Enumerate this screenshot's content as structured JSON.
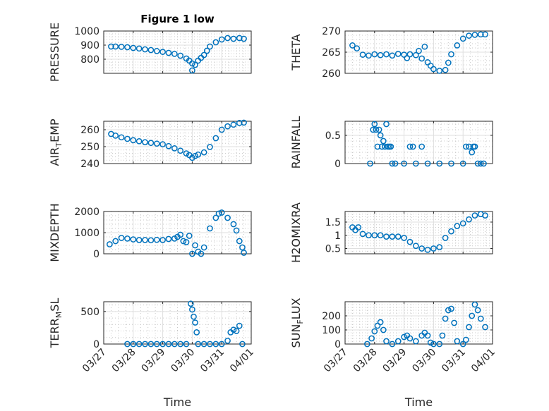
{
  "chart_data": [
    {
      "type": "scatter",
      "title": "Figure 1 low",
      "ylabel": "PRESSURE",
      "ylabel_sub": "",
      "ylabel_end": "",
      "ylim": [
        700,
        1000
      ],
      "yticks": [
        800,
        900,
        1000
      ],
      "x": [
        "03/27",
        "03/28",
        "03/29",
        "03/30",
        "03/31",
        "04/01"
      ],
      "xlabel": "",
      "show_xticklabels": false,
      "points": [
        [
          0.25,
          890
        ],
        [
          0.4,
          890
        ],
        [
          0.6,
          888
        ],
        [
          0.8,
          885
        ],
        [
          1.0,
          880
        ],
        [
          1.2,
          876
        ],
        [
          1.4,
          870
        ],
        [
          1.6,
          865
        ],
        [
          1.8,
          858
        ],
        [
          2.0,
          852
        ],
        [
          2.2,
          845
        ],
        [
          2.4,
          838
        ],
        [
          2.6,
          825
        ],
        [
          2.8,
          805
        ],
        [
          2.9,
          790
        ],
        [
          3.0,
          770
        ],
        [
          3.0,
          720
        ],
        [
          3.1,
          760
        ],
        [
          3.2,
          790
        ],
        [
          3.3,
          810
        ],
        [
          3.4,
          830
        ],
        [
          3.5,
          860
        ],
        [
          3.6,
          890
        ],
        [
          3.8,
          920
        ],
        [
          4.0,
          940
        ],
        [
          4.2,
          950
        ],
        [
          4.4,
          945
        ],
        [
          4.6,
          950
        ],
        [
          4.75,
          945
        ]
      ]
    },
    {
      "type": "scatter",
      "title": "",
      "ylabel": "THETA",
      "ylabel_sub": "",
      "ylabel_end": "",
      "ylim": [
        260,
        270
      ],
      "yticks": [
        260,
        265,
        270
      ],
      "x": [
        "03/27",
        "03/28",
        "03/29",
        "03/30",
        "03/31",
        "04/01"
      ],
      "xlabel": "",
      "show_xticklabels": false,
      "points": [
        [
          0.25,
          266.6
        ],
        [
          0.4,
          265.9
        ],
        [
          0.6,
          264.4
        ],
        [
          0.8,
          264.2
        ],
        [
          1.0,
          264.5
        ],
        [
          1.2,
          264.3
        ],
        [
          1.4,
          264.5
        ],
        [
          1.6,
          264.2
        ],
        [
          1.8,
          264.6
        ],
        [
          2.0,
          264.4
        ],
        [
          2.1,
          263.6
        ],
        [
          2.2,
          264.5
        ],
        [
          2.4,
          264.3
        ],
        [
          2.5,
          265.3
        ],
        [
          2.6,
          263.5
        ],
        [
          2.7,
          266.3
        ],
        [
          2.8,
          262.6
        ],
        [
          2.9,
          261.8
        ],
        [
          3.0,
          261.0
        ],
        [
          3.2,
          260.6
        ],
        [
          3.4,
          260.8
        ],
        [
          3.5,
          262.5
        ],
        [
          3.6,
          264.5
        ],
        [
          3.8,
          266.6
        ],
        [
          4.0,
          268.2
        ],
        [
          4.2,
          268.9
        ],
        [
          4.4,
          269.1
        ],
        [
          4.6,
          269.2
        ],
        [
          4.75,
          269.2
        ]
      ]
    },
    {
      "type": "scatter",
      "title": "",
      "ylabel": "AIR",
      "ylabel_sub": "T",
      "ylabel_end": "EMP",
      "ylim": [
        240,
        265
      ],
      "yticks": [
        240,
        250,
        260
      ],
      "x": [
        "03/27",
        "03/28",
        "03/29",
        "03/30",
        "03/31",
        "04/01"
      ],
      "xlabel": "",
      "show_xticklabels": false,
      "points": [
        [
          0.25,
          257.5
        ],
        [
          0.4,
          256.5
        ],
        [
          0.6,
          255.5
        ],
        [
          0.8,
          254.6
        ],
        [
          1.0,
          253.8
        ],
        [
          1.2,
          253.2
        ],
        [
          1.4,
          252.6
        ],
        [
          1.6,
          252.2
        ],
        [
          1.8,
          251.8
        ],
        [
          2.0,
          251.4
        ],
        [
          2.2,
          250.3
        ],
        [
          2.4,
          249.0
        ],
        [
          2.6,
          247.6
        ],
        [
          2.8,
          246.0
        ],
        [
          2.9,
          245.0
        ],
        [
          3.0,
          243.4
        ],
        [
          3.1,
          244.5
        ],
        [
          3.2,
          245.3
        ],
        [
          3.4,
          246.6
        ],
        [
          3.6,
          249.8
        ],
        [
          3.8,
          255.0
        ],
        [
          4.0,
          260.0
        ],
        [
          4.2,
          262.0
        ],
        [
          4.4,
          263.0
        ],
        [
          4.6,
          264.0
        ],
        [
          4.75,
          264.2
        ]
      ]
    },
    {
      "type": "scatter",
      "title": "",
      "ylabel": "RAINFALL",
      "ylabel_sub": "",
      "ylabel_end": "",
      "ylim": [
        0,
        0.75
      ],
      "yticks": [
        0,
        0.5
      ],
      "x": [
        "03/27",
        "03/28",
        "03/29",
        "03/30",
        "03/31",
        "04/01"
      ],
      "xlabel": "",
      "show_xticklabels": false,
      "points": [
        [
          0.85,
          0
        ],
        [
          0.95,
          0.6
        ],
        [
          1.0,
          0.7
        ],
        [
          1.05,
          0.6
        ],
        [
          1.1,
          0.3
        ],
        [
          1.15,
          0.6
        ],
        [
          1.2,
          0.5
        ],
        [
          1.25,
          0.3
        ],
        [
          1.3,
          0.4
        ],
        [
          1.35,
          0.3
        ],
        [
          1.4,
          0.7
        ],
        [
          1.45,
          0.3
        ],
        [
          1.5,
          0.3
        ],
        [
          1.55,
          0.3
        ],
        [
          1.6,
          0
        ],
        [
          1.7,
          0
        ],
        [
          2.0,
          0
        ],
        [
          2.2,
          0.3
        ],
        [
          2.3,
          0.3
        ],
        [
          2.4,
          0
        ],
        [
          2.6,
          0.3
        ],
        [
          2.8,
          0
        ],
        [
          3.2,
          0
        ],
        [
          3.6,
          0
        ],
        [
          4.0,
          0
        ],
        [
          4.1,
          0.3
        ],
        [
          4.2,
          0.3
        ],
        [
          4.3,
          0.2
        ],
        [
          4.35,
          0.3
        ],
        [
          4.4,
          0.3
        ],
        [
          4.5,
          0
        ],
        [
          4.6,
          0
        ],
        [
          4.7,
          0
        ]
      ]
    },
    {
      "type": "scatter",
      "title": "",
      "ylabel": "MIXDEPTH",
      "ylabel_sub": "",
      "ylabel_end": "",
      "ylim": [
        0,
        2000
      ],
      "yticks": [
        0,
        1000,
        2000
      ],
      "x": [
        "03/27",
        "03/28",
        "03/29",
        "03/30",
        "03/31",
        "04/01"
      ],
      "xlabel": "",
      "show_xticklabels": false,
      "points": [
        [
          0.2,
          450
        ],
        [
          0.4,
          600
        ],
        [
          0.6,
          750
        ],
        [
          0.8,
          720
        ],
        [
          1.0,
          680
        ],
        [
          1.2,
          650
        ],
        [
          1.4,
          650
        ],
        [
          1.6,
          640
        ],
        [
          1.8,
          660
        ],
        [
          2.0,
          650
        ],
        [
          2.2,
          700
        ],
        [
          2.4,
          720
        ],
        [
          2.5,
          800
        ],
        [
          2.6,
          900
        ],
        [
          2.7,
          600
        ],
        [
          2.8,
          550
        ],
        [
          2.9,
          850
        ],
        [
          3.0,
          0
        ],
        [
          3.1,
          400
        ],
        [
          3.2,
          100
        ],
        [
          3.3,
          0
        ],
        [
          3.4,
          300
        ],
        [
          3.6,
          1200
        ],
        [
          3.8,
          1700
        ],
        [
          3.9,
          1900
        ],
        [
          4.0,
          1950
        ],
        [
          4.2,
          1700
        ],
        [
          4.4,
          1400
        ],
        [
          4.5,
          1100
        ],
        [
          4.6,
          600
        ],
        [
          4.7,
          300
        ],
        [
          4.75,
          50
        ]
      ]
    },
    {
      "type": "scatter",
      "title": "",
      "ylabel": "H2OMIXRA",
      "ylabel_sub": "",
      "ylabel_end": "",
      "ylim": [
        0.3,
        1.9
      ],
      "yticks": [
        0.5,
        1,
        1.5
      ],
      "x": [
        "03/27",
        "03/28",
        "03/29",
        "03/30",
        "03/31",
        "04/01"
      ],
      "xlabel": "",
      "show_xticklabels": false,
      "points": [
        [
          0.25,
          1.3
        ],
        [
          0.35,
          1.2
        ],
        [
          0.45,
          1.3
        ],
        [
          0.6,
          1.05
        ],
        [
          0.8,
          1.0
        ],
        [
          1.0,
          1.0
        ],
        [
          1.2,
          1.0
        ],
        [
          1.4,
          0.95
        ],
        [
          1.6,
          0.95
        ],
        [
          1.8,
          0.95
        ],
        [
          2.0,
          0.9
        ],
        [
          2.2,
          0.75
        ],
        [
          2.4,
          0.6
        ],
        [
          2.6,
          0.5
        ],
        [
          2.8,
          0.45
        ],
        [
          3.0,
          0.5
        ],
        [
          3.2,
          0.55
        ],
        [
          3.4,
          0.9
        ],
        [
          3.6,
          1.15
        ],
        [
          3.8,
          1.35
        ],
        [
          4.0,
          1.45
        ],
        [
          4.2,
          1.6
        ],
        [
          4.4,
          1.75
        ],
        [
          4.6,
          1.8
        ],
        [
          4.75,
          1.75
        ]
      ]
    },
    {
      "type": "scatter",
      "title": "",
      "ylabel": "TERR",
      "ylabel_sub": "M",
      "ylabel_end": "SL",
      "ylim": [
        0,
        650
      ],
      "yticks": [
        0,
        500
      ],
      "x": [
        "03/27",
        "03/28",
        "03/29",
        "03/30",
        "03/31",
        "04/01"
      ],
      "xlabel": "Time",
      "show_xticklabels": true,
      "points": [
        [
          0.8,
          0
        ],
        [
          1.0,
          0
        ],
        [
          1.2,
          0
        ],
        [
          1.4,
          0
        ],
        [
          1.6,
          0
        ],
        [
          1.8,
          0
        ],
        [
          2.0,
          0
        ],
        [
          2.2,
          0
        ],
        [
          2.4,
          0
        ],
        [
          2.6,
          0
        ],
        [
          2.8,
          0
        ],
        [
          2.95,
          620
        ],
        [
          3.0,
          530
        ],
        [
          3.05,
          420
        ],
        [
          3.1,
          330
        ],
        [
          3.15,
          180
        ],
        [
          3.2,
          0
        ],
        [
          3.4,
          0
        ],
        [
          3.6,
          0
        ],
        [
          3.8,
          0
        ],
        [
          4.0,
          0
        ],
        [
          4.2,
          50
        ],
        [
          4.3,
          180
        ],
        [
          4.4,
          220
        ],
        [
          4.5,
          200
        ],
        [
          4.6,
          280
        ],
        [
          4.7,
          0
        ]
      ]
    },
    {
      "type": "scatter",
      "title": "",
      "ylabel": "SUN",
      "ylabel_sub": "F",
      "ylabel_end": "LUX",
      "ylim": [
        0,
        300
      ],
      "yticks": [
        0,
        100,
        200
      ],
      "x": [
        "03/27",
        "03/28",
        "03/29",
        "03/30",
        "03/31",
        "04/01"
      ],
      "xlabel": "Time",
      "show_xticklabels": true,
      "points": [
        [
          0.75,
          0
        ],
        [
          0.9,
          40
        ],
        [
          1.0,
          90
        ],
        [
          1.1,
          130
        ],
        [
          1.2,
          155
        ],
        [
          1.3,
          100
        ],
        [
          1.4,
          20
        ],
        [
          1.6,
          0
        ],
        [
          1.8,
          20
        ],
        [
          2.0,
          50
        ],
        [
          2.1,
          60
        ],
        [
          2.2,
          40
        ],
        [
          2.4,
          20
        ],
        [
          2.6,
          60
        ],
        [
          2.7,
          80
        ],
        [
          2.8,
          60
        ],
        [
          2.9,
          10
        ],
        [
          3.0,
          0
        ],
        [
          3.2,
          0
        ],
        [
          3.3,
          60
        ],
        [
          3.4,
          180
        ],
        [
          3.5,
          240
        ],
        [
          3.6,
          250
        ],
        [
          3.7,
          150
        ],
        [
          3.8,
          20
        ],
        [
          4.0,
          0
        ],
        [
          4.1,
          30
        ],
        [
          4.2,
          120
        ],
        [
          4.3,
          200
        ],
        [
          4.4,
          280
        ],
        [
          4.5,
          240
        ],
        [
          4.6,
          180
        ],
        [
          4.75,
          120
        ]
      ]
    }
  ]
}
